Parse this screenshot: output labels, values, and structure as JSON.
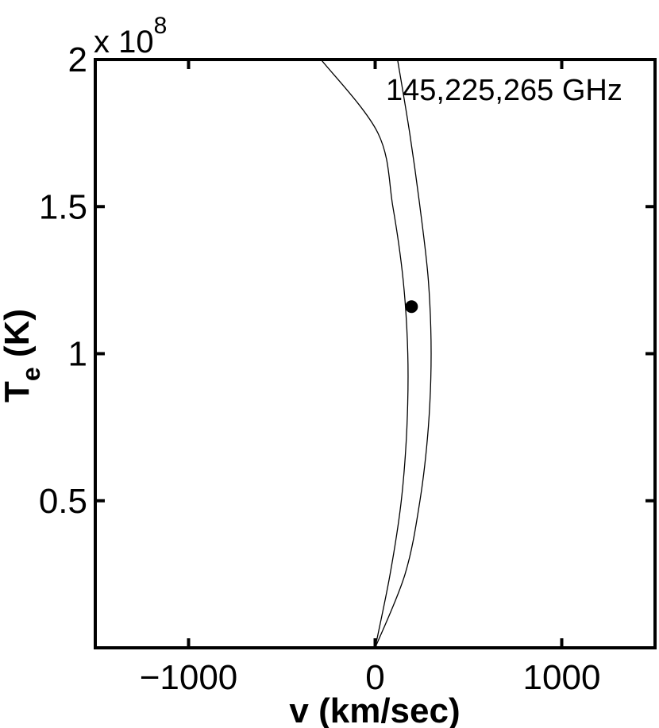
{
  "chart_data": {
    "type": "line",
    "xlabel": "v (km/sec)",
    "ylabel_main": "T",
    "ylabel_sub": "e",
    "ylabel_unit": " (K)",
    "y_multiplier": {
      "base": "x 10",
      "exponent": "8"
    },
    "annotation": "145,225,265 GHz",
    "xlim": [
      -1500,
      1500
    ],
    "ylim": [
      0,
      2
    ],
    "xticks": [
      -1000,
      0,
      1000
    ],
    "xtick_labels": [
      "−1000",
      "0",
      "1000"
    ],
    "yticks": [
      0.5,
      1,
      1.5,
      2
    ],
    "ytick_labels": [
      "0.5",
      "1",
      "1.5",
      "2"
    ],
    "grid": false,
    "series": [
      {
        "points": [
          [
            0,
            0
          ],
          [
            80,
            0.25
          ],
          [
            140,
            0.5
          ],
          [
            170,
            0.75
          ],
          [
            175,
            1.0
          ],
          [
            150,
            1.25
          ],
          [
            95,
            1.5
          ],
          [
            15,
            1.75
          ],
          [
            -290,
            2.0
          ]
        ]
      },
      {
        "points": [
          [
            0,
            0
          ],
          [
            160,
            0.25
          ],
          [
            240,
            0.5
          ],
          [
            285,
            0.75
          ],
          [
            300,
            1.0
          ],
          [
            285,
            1.25
          ],
          [
            240,
            1.5
          ],
          [
            185,
            1.75
          ],
          [
            120,
            2.0
          ]
        ]
      }
    ],
    "marker": {
      "x": 195,
      "y": 1.16
    }
  }
}
